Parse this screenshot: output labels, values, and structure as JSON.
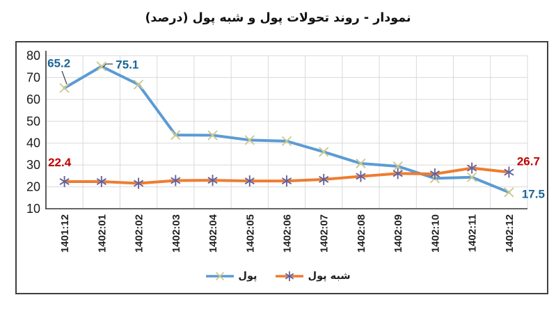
{
  "title": "نمودار - روند تحولات پول و شبه پول (درصد)",
  "chart_data": {
    "type": "line",
    "categories": [
      "1401:12",
      "1402:01",
      "1402:02",
      "1402:03",
      "1402:04",
      "1402:05",
      "1402:06",
      "1402:07",
      "1402:08",
      "1402:09",
      "1402:10",
      "1402:11",
      "1402:12"
    ],
    "series": [
      {
        "name": "پول",
        "color": "#5B9BD5",
        "marker": "x",
        "marker_color": "#CDC98F",
        "label_color": "#1B6596",
        "values": [
          65.2,
          75.1,
          66.8,
          43.7,
          43.6,
          41.4,
          40.9,
          36.0,
          30.7,
          29.4,
          23.9,
          24.4,
          17.5
        ],
        "point_labels": {
          "0": "65.2",
          "1": "75.1",
          "12": "17.5"
        }
      },
      {
        "name": "شبه پول",
        "color": "#ED7D31",
        "marker": "asterisk",
        "marker_color": "#62629E",
        "label_color": "#C00000",
        "values": [
          22.4,
          22.4,
          21.6,
          22.9,
          23.0,
          22.7,
          22.7,
          23.4,
          24.8,
          26.1,
          25.9,
          28.6,
          26.7
        ],
        "point_labels": {
          "0": "22.4",
          "12": "26.7"
        }
      }
    ],
    "ylim": [
      10,
      80
    ],
    "yticks": [
      80,
      70,
      60,
      50,
      40,
      30,
      20,
      10
    ],
    "grid": true,
    "legend_position": "bottom"
  }
}
